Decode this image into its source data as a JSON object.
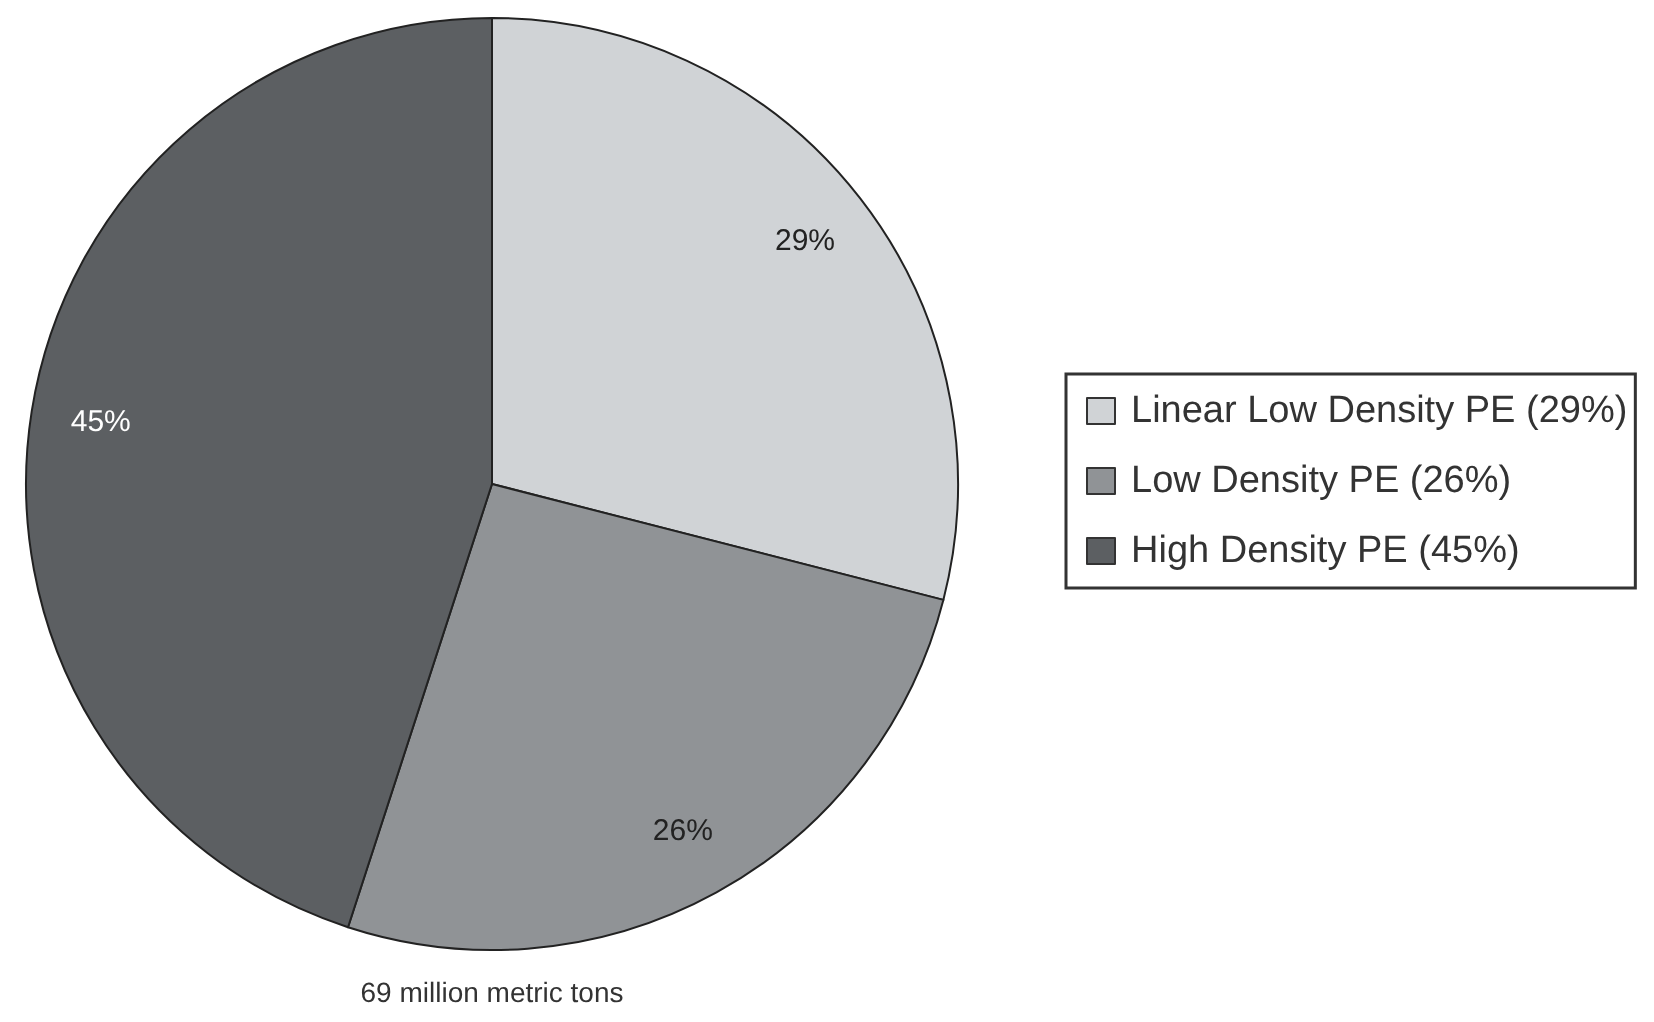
{
  "chart_data": {
    "type": "pie",
    "categories": [
      "Linear Low Density PE (29%)",
      "Low Density PE (26%)",
      "High Density PE (45%)"
    ],
    "values": [
      29,
      26,
      45
    ],
    "colors": [
      "#d0d3d6",
      "#909396",
      "#5c5f62"
    ],
    "value_labels": [
      "29%",
      "26%",
      "45%"
    ],
    "legend": "right",
    "annotations": [
      "69 million metric tons"
    ]
  }
}
